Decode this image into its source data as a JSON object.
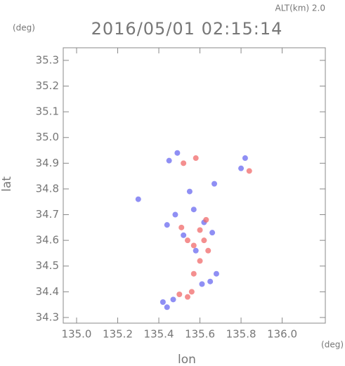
{
  "chart_data": {
    "type": "scatter",
    "title": "2016/05/01 02:15:14",
    "altitude_label": "ALT(km) 2.0",
    "y_unit": "(deg)",
    "x_unit": "(deg)",
    "xlabel": "lon",
    "ylabel": "lat",
    "xlim": [
      134.935,
      136.21
    ],
    "ylim": [
      34.278,
      35.349
    ],
    "xticks": [
      {
        "value": 135,
        "label": "135.0"
      },
      135.2,
      135.4,
      135.6,
      135.8,
      {
        "value": 136,
        "label": "136.0"
      }
    ],
    "yticks": [
      34.3,
      34.4,
      34.5,
      34.6,
      34.7,
      34.8,
      34.9,
      {
        "value": 35,
        "label": "35.0"
      },
      35.1,
      35.2,
      35.3
    ],
    "series": [
      {
        "color": "#6a6af0",
        "x": [
          135.49,
          135.45,
          135.3,
          135.55,
          135.82,
          135.8,
          135.44,
          135.48,
          135.66,
          135.52,
          135.58,
          135.68,
          135.65,
          135.61,
          135.42,
          135.44,
          135.47,
          135.67,
          135.57,
          135.62
        ],
        "values": [
          34.94,
          34.91,
          34.76,
          34.79,
          34.92,
          34.88,
          34.66,
          34.7,
          34.63,
          34.62,
          34.56,
          34.47,
          34.44,
          34.43,
          34.36,
          34.34,
          34.37,
          34.82,
          34.72,
          34.67
        ]
      },
      {
        "color": "#f06a6a",
        "x": [
          135.58,
          135.84,
          135.52,
          135.6,
          135.62,
          135.57,
          135.54,
          135.6,
          135.57,
          135.56,
          135.54,
          135.5,
          135.63,
          135.51,
          135.64
        ],
        "values": [
          34.92,
          34.87,
          34.9,
          34.64,
          34.6,
          34.58,
          34.6,
          34.52,
          34.47,
          34.4,
          34.38,
          34.39,
          34.68,
          34.65,
          34.56
        ]
      }
    ]
  }
}
